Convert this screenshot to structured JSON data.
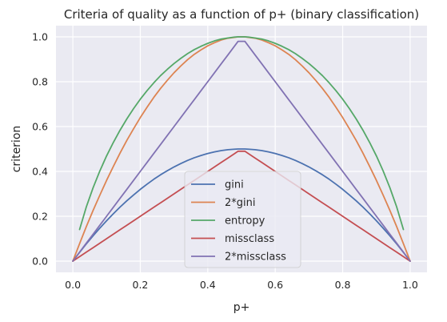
{
  "chart_data": {
    "type": "line",
    "title": "Criteria of quality as a function of p+ (binary classification)",
    "xlabel": "p+",
    "ylabel": "criterion",
    "xlim": [
      -0.05,
      1.05
    ],
    "ylim": [
      -0.05,
      1.05
    ],
    "xticks": [
      0.0,
      0.2,
      0.4,
      0.6,
      0.8,
      1.0
    ],
    "xtick_labels": [
      "0.0",
      "0.2",
      "0.4",
      "0.6",
      "0.8",
      "1.0"
    ],
    "yticks": [
      0.0,
      0.2,
      0.4,
      0.6,
      0.8,
      1.0
    ],
    "ytick_labels": [
      "0.0",
      "0.2",
      "0.4",
      "0.6",
      "0.8",
      "1.0"
    ],
    "grid": true,
    "legend": "center-bottom",
    "x": [
      0.0,
      0.02,
      0.04,
      0.06,
      0.08,
      0.1,
      0.12,
      0.14,
      0.16,
      0.18,
      0.2,
      0.22,
      0.24,
      0.26,
      0.28,
      0.3,
      0.32,
      0.34,
      0.36,
      0.38,
      0.4,
      0.42,
      0.44,
      0.46,
      0.48,
      0.49,
      0.5,
      0.51,
      0.52,
      0.54,
      0.56,
      0.58,
      0.6,
      0.62,
      0.64,
      0.66,
      0.68,
      0.7,
      0.72,
      0.74,
      0.76,
      0.78,
      0.8,
      0.82,
      0.84,
      0.86,
      0.88,
      0.9,
      0.92,
      0.94,
      0.96,
      0.98,
      1.0
    ],
    "series": [
      {
        "name": "gini",
        "color": "#4c72b0",
        "values": [
          0.0,
          0.039,
          0.077,
          0.113,
          0.147,
          0.18,
          0.211,
          0.241,
          0.269,
          0.295,
          0.32,
          0.343,
          0.365,
          0.385,
          0.403,
          0.42,
          0.435,
          0.449,
          0.461,
          0.471,
          0.48,
          0.487,
          0.493,
          0.497,
          0.499,
          0.5,
          0.5,
          0.5,
          0.499,
          0.497,
          0.493,
          0.487,
          0.48,
          0.471,
          0.461,
          0.449,
          0.435,
          0.42,
          0.403,
          0.385,
          0.365,
          0.343,
          0.32,
          0.295,
          0.269,
          0.241,
          0.211,
          0.18,
          0.147,
          0.113,
          0.077,
          0.039,
          0.0
        ]
      },
      {
        "name": "2*gini",
        "color": "#dd8452",
        "values": [
          0.0,
          0.078,
          0.154,
          0.226,
          0.294,
          0.36,
          0.422,
          0.482,
          0.538,
          0.59,
          0.64,
          0.686,
          0.73,
          0.77,
          0.806,
          0.84,
          0.87,
          0.898,
          0.922,
          0.942,
          0.96,
          0.974,
          0.986,
          0.994,
          0.998,
          1.0,
          1.0,
          1.0,
          0.998,
          0.994,
          0.986,
          0.974,
          0.96,
          0.942,
          0.922,
          0.898,
          0.87,
          0.84,
          0.806,
          0.77,
          0.73,
          0.686,
          0.64,
          0.59,
          0.538,
          0.482,
          0.422,
          0.36,
          0.294,
          0.226,
          0.154,
          0.078,
          0.0
        ]
      },
      {
        "name": "entropy",
        "color": "#55a868",
        "values": [
          null,
          0.141,
          0.242,
          0.327,
          0.402,
          0.469,
          0.529,
          0.584,
          0.634,
          0.68,
          0.722,
          0.76,
          0.795,
          0.827,
          0.855,
          0.881,
          0.904,
          0.925,
          0.943,
          0.958,
          0.971,
          0.982,
          0.99,
          0.995,
          0.999,
          1.0,
          1.0,
          1.0,
          0.999,
          0.995,
          0.99,
          0.982,
          0.971,
          0.958,
          0.943,
          0.925,
          0.904,
          0.881,
          0.855,
          0.827,
          0.795,
          0.76,
          0.722,
          0.68,
          0.634,
          0.584,
          0.529,
          0.469,
          0.402,
          0.327,
          0.242,
          0.141,
          null
        ]
      },
      {
        "name": "missclass",
        "color": "#c44e52",
        "values": [
          0.0,
          0.02,
          0.04,
          0.06,
          0.08,
          0.1,
          0.12,
          0.14,
          0.16,
          0.18,
          0.2,
          0.22,
          0.24,
          0.26,
          0.28,
          0.3,
          0.32,
          0.34,
          0.36,
          0.38,
          0.4,
          0.42,
          0.44,
          0.46,
          0.48,
          0.49,
          0.49,
          0.49,
          0.48,
          0.46,
          0.44,
          0.42,
          0.4,
          0.38,
          0.36,
          0.34,
          0.32,
          0.3,
          0.28,
          0.26,
          0.24,
          0.22,
          0.2,
          0.18,
          0.16,
          0.14,
          0.12,
          0.1,
          0.08,
          0.06,
          0.04,
          0.02,
          0.0
        ]
      },
      {
        "name": "2*missclass",
        "color": "#8172b3",
        "values": [
          0.0,
          0.04,
          0.08,
          0.12,
          0.16,
          0.2,
          0.24,
          0.28,
          0.32,
          0.36,
          0.4,
          0.44,
          0.48,
          0.52,
          0.56,
          0.6,
          0.64,
          0.68,
          0.72,
          0.76,
          0.8,
          0.84,
          0.88,
          0.92,
          0.96,
          0.98,
          0.98,
          0.98,
          0.96,
          0.92,
          0.88,
          0.84,
          0.8,
          0.76,
          0.72,
          0.68,
          0.64,
          0.6,
          0.56,
          0.52,
          0.48,
          0.44,
          0.4,
          0.36,
          0.32,
          0.28,
          0.24,
          0.2,
          0.16,
          0.12,
          0.08,
          0.04,
          0.0
        ]
      }
    ],
    "colors": {
      "plot_background": "#eaeaf2",
      "grid": "#ffffff",
      "text": "#262626"
    }
  }
}
